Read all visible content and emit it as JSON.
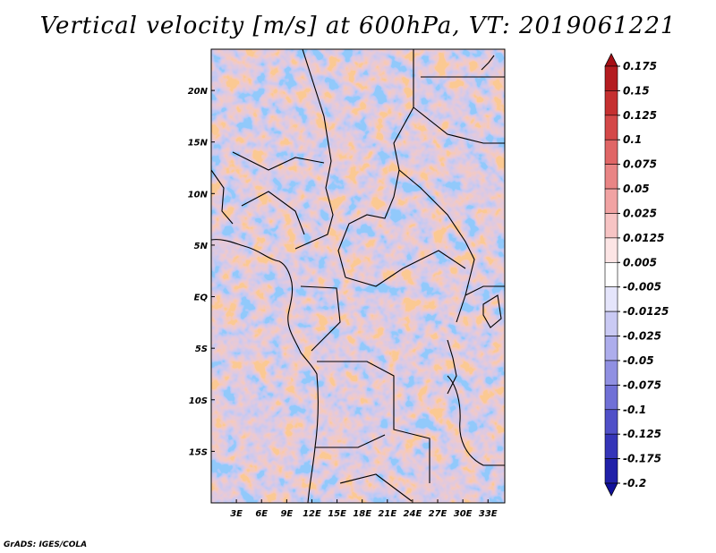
{
  "title": "Vertical velocity [m/s] at 600hPa, VT: 2019061221",
  "credit": "GrADS: IGES/COLA",
  "map": {
    "lat_labels": [
      "20N",
      "15N",
      "10N",
      "5N",
      "EQ",
      "5S",
      "10S",
      "15S"
    ],
    "lon_labels": [
      "3E",
      "6E",
      "9E",
      "12E",
      "15E",
      "18E",
      "21E",
      "24E",
      "27E",
      "30E",
      "33E"
    ],
    "lon_range": [
      0,
      35
    ],
    "lat_range": [
      -20,
      24
    ]
  },
  "colorbar": {
    "labels": [
      "0.175",
      "0.15",
      "0.125",
      "0.1",
      "0.075",
      "0.05",
      "0.025",
      "0.0125",
      "0.005",
      "-0.005",
      "-0.0125",
      "-0.025",
      "-0.05",
      "-0.075",
      "-0.1",
      "-0.125",
      "-0.175",
      "-0.2"
    ],
    "colors": [
      "#a50f15",
      "#b41c20",
      "#c53030",
      "#d44848",
      "#e06666",
      "#e98585",
      "#f1a3a3",
      "#f7c4c4",
      "#fce5e5",
      "#ffffff",
      "#e5e5fb",
      "#cacaf4",
      "#adadec",
      "#9090e2",
      "#7070d6",
      "#5050c8",
      "#3535b8",
      "#2020a8",
      "#10109a"
    ]
  }
}
